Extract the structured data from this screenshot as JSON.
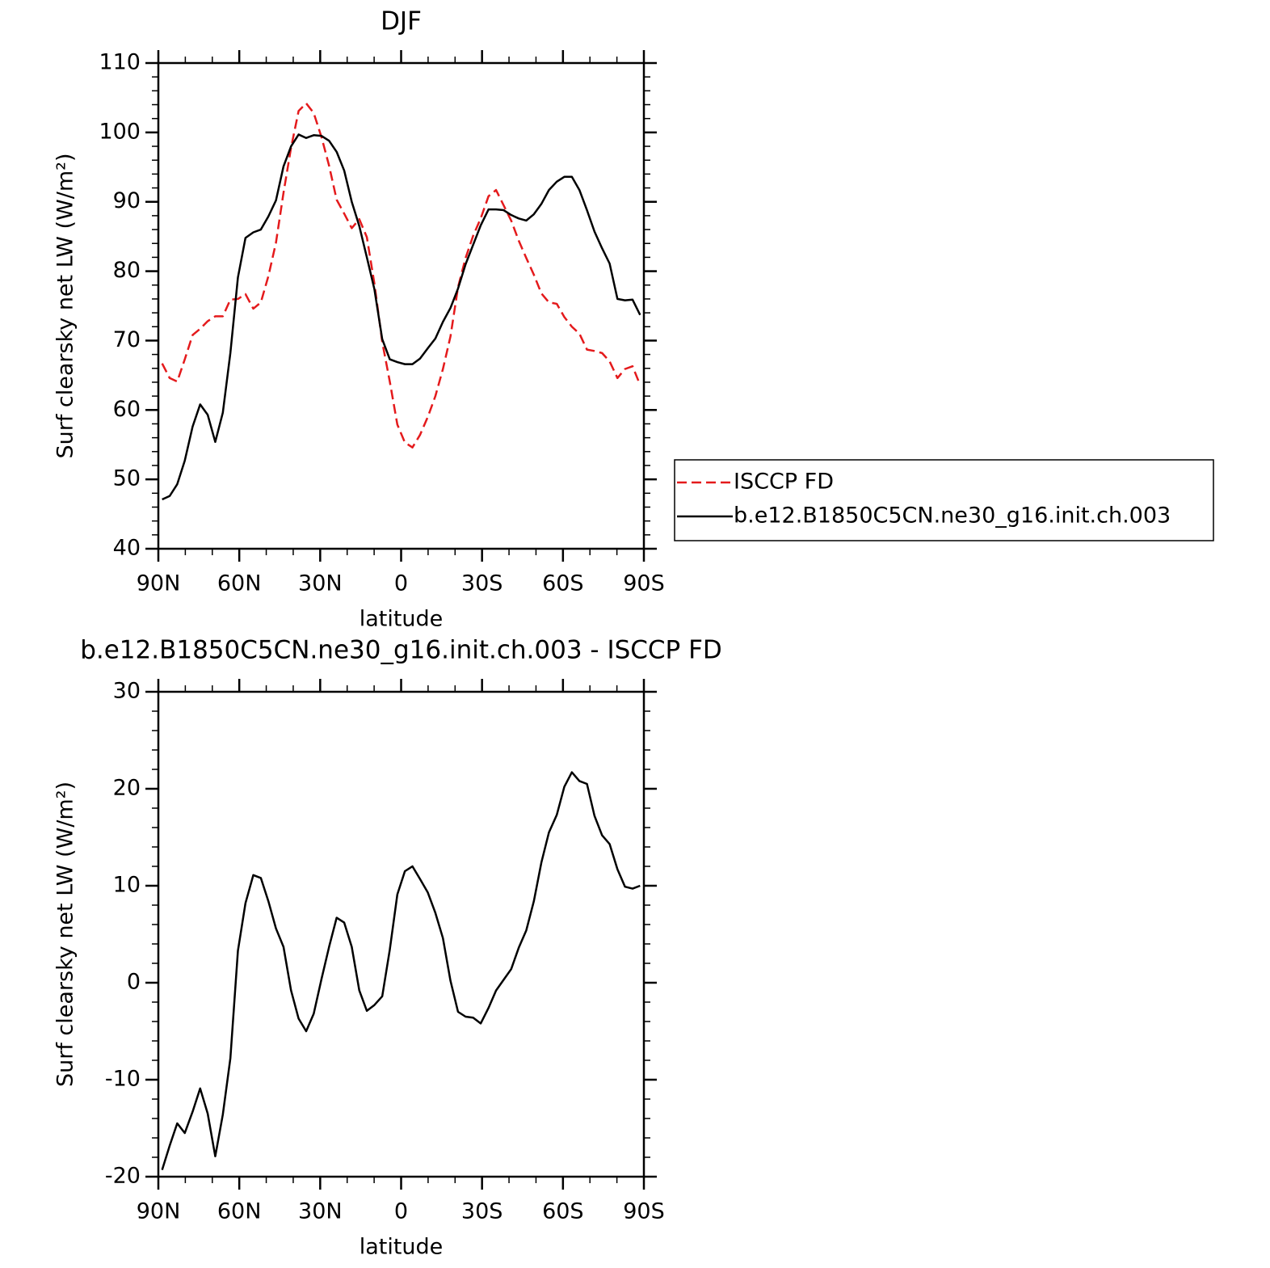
{
  "chart_data": [
    {
      "type": "line",
      "title": "DJF",
      "xlabel": "latitude",
      "ylabel": "Surf clearsky net LW (W/m²)",
      "x": [
        88.6,
        85.8,
        83.0,
        80.2,
        77.3,
        74.5,
        71.7,
        68.9,
        66.1,
        63.3,
        60.5,
        57.7,
        54.8,
        52.0,
        49.2,
        46.4,
        43.6,
        40.8,
        38.0,
        35.2,
        32.4,
        29.5,
        26.7,
        23.9,
        21.1,
        18.3,
        15.5,
        12.7,
        9.9,
        7.0,
        4.2,
        1.4,
        -1.4,
        -4.2,
        -7.0,
        -9.9,
        -12.7,
        -15.5,
        -18.3,
        -21.1,
        -23.9,
        -26.7,
        -29.5,
        -32.4,
        -35.2,
        -38.0,
        -40.8,
        -43.6,
        -46.4,
        -49.2,
        -52.0,
        -54.8,
        -57.7,
        -60.5,
        -63.3,
        -66.1,
        -68.9,
        -71.7,
        -74.5,
        -77.3,
        -80.2,
        -83.0,
        -85.8,
        -88.6
      ],
      "series": [
        {
          "name": "ISCCP FD",
          "color": "#e41a1c",
          "linestyle": "dashed",
          "values": [
            66.7,
            64.6,
            64.1,
            67.3,
            70.8,
            71.7,
            72.8,
            73.5,
            73.5,
            75.9,
            76.0,
            76.7,
            74.6,
            75.5,
            79.3,
            84.1,
            91.3,
            97.8,
            103.1,
            104.2,
            102.8,
            99.3,
            95.2,
            90.3,
            88.3,
            86.2,
            87.5,
            84.9,
            78.2,
            69.8,
            64.1,
            57.9,
            55.3,
            54.6,
            56.4,
            59.0,
            62.0,
            65.9,
            70.6,
            77.7,
            81.9,
            85.1,
            87.6,
            90.8,
            91.7,
            89.5,
            87.3,
            84.4,
            81.9,
            79.5,
            76.8,
            75.5,
            75.3,
            73.4,
            72.0,
            71.0,
            68.7,
            68.5,
            68.2,
            67.0,
            64.6,
            65.9,
            66.3,
            63.6
          ]
        },
        {
          "name": "b.e12.B1850C5CN.ne30_g16.init.ch.003",
          "color": "#000000",
          "linestyle": "solid",
          "values": [
            47.1,
            47.6,
            49.3,
            52.7,
            57.6,
            60.8,
            59.3,
            55.4,
            59.6,
            68.2,
            79.1,
            84.8,
            85.6,
            86.0,
            87.9,
            90.2,
            95.1,
            98.0,
            99.7,
            99.2,
            99.6,
            99.5,
            98.8,
            97.2,
            94.5,
            90.0,
            86.5,
            82.0,
            77.4,
            70.2,
            67.3,
            66.9,
            66.6,
            66.6,
            67.4,
            68.9,
            70.3,
            72.7,
            74.7,
            77.5,
            81.0,
            83.8,
            86.6,
            88.9,
            88.9,
            88.8,
            88.1,
            87.6,
            87.3,
            88.2,
            89.7,
            91.7,
            92.9,
            93.6,
            93.6,
            91.7,
            88.8,
            85.7,
            83.3,
            81.1,
            76.0,
            75.8,
            75.9,
            73.7
          ]
        }
      ],
      "xlim": [
        90,
        -90
      ],
      "xticks": [
        {
          "value": 90,
          "label": "90N"
        },
        {
          "value": 60,
          "label": "60N"
        },
        {
          "value": 30,
          "label": "30N"
        },
        0,
        {
          "value": -30,
          "label": "30S"
        },
        {
          "value": -60,
          "label": "60S"
        },
        {
          "value": -90,
          "label": "90S"
        }
      ],
      "xminorticks": [
        80,
        70,
        50,
        40,
        20,
        10,
        -10,
        -20,
        -40,
        -50,
        -70,
        -80
      ],
      "ylim": [
        40,
        110
      ],
      "yticks": [
        40,
        50,
        60,
        70,
        80,
        90,
        100,
        110
      ],
      "yminorticks": [
        42,
        44,
        46,
        48,
        52,
        54,
        56,
        58,
        62,
        64,
        66,
        68,
        72,
        74,
        76,
        78,
        82,
        84,
        86,
        88,
        92,
        94,
        96,
        98,
        102,
        104,
        106,
        108
      ],
      "legend": "right"
    },
    {
      "type": "line",
      "title": "b.e12.B1850C5CN.ne30_g16.init.ch.003 - ISCCP FD",
      "xlabel": "latitude",
      "ylabel": "Surf clearsky net LW (W/m²)",
      "x": [
        88.6,
        85.8,
        83.0,
        80.2,
        77.3,
        74.5,
        71.7,
        68.9,
        66.1,
        63.3,
        60.5,
        57.7,
        54.8,
        52.0,
        49.2,
        46.4,
        43.6,
        40.8,
        38.0,
        35.2,
        32.4,
        29.5,
        26.7,
        23.9,
        21.1,
        18.3,
        15.5,
        12.7,
        9.9,
        7.0,
        4.2,
        1.4,
        -1.4,
        -4.2,
        -7.0,
        -9.9,
        -12.7,
        -15.5,
        -18.3,
        -21.1,
        -23.9,
        -26.7,
        -29.5,
        -32.4,
        -35.2,
        -38.0,
        -40.8,
        -43.6,
        -46.4,
        -49.2,
        -52.0,
        -54.8,
        -57.7,
        -60.5,
        -63.3,
        -66.1,
        -68.9,
        -71.7,
        -74.5,
        -77.3,
        -80.2,
        -83.0,
        -85.8,
        -88.6
      ],
      "color": "#000000",
      "values": [
        -19.3,
        -16.8,
        -14.5,
        -15.5,
        -13.3,
        -10.9,
        -13.5,
        -17.9,
        -13.6,
        -7.8,
        3.3,
        8.2,
        11.1,
        10.8,
        8.4,
        5.6,
        3.7,
        -0.8,
        -3.7,
        -5.0,
        -3.2,
        0.4,
        3.7,
        6.7,
        6.2,
        3.7,
        -0.8,
        -2.9,
        -2.3,
        -1.4,
        3.4,
        9.1,
        11.5,
        12.0,
        10.7,
        9.3,
        7.2,
        4.6,
        0.2,
        -3.0,
        -3.5,
        -3.6,
        -4.2,
        -2.6,
        -0.8,
        0.3,
        1.4,
        3.6,
        5.4,
        8.4,
        12.4,
        15.5,
        17.3,
        20.2,
        21.7,
        20.8,
        20.5,
        17.2,
        15.2,
        14.3,
        11.7,
        9.9,
        9.7,
        10.0
      ],
      "xlim": [
        90,
        -90
      ],
      "xticks": [
        {
          "value": 90,
          "label": "90N"
        },
        {
          "value": 60,
          "label": "60N"
        },
        {
          "value": 30,
          "label": "30N"
        },
        0,
        {
          "value": -30,
          "label": "30S"
        },
        {
          "value": -60,
          "label": "60S"
        },
        {
          "value": -90,
          "label": "90S"
        }
      ],
      "xminorticks": [
        80,
        70,
        50,
        40,
        20,
        10,
        -10,
        -20,
        -40,
        -50,
        -70,
        -80
      ],
      "ylim": [
        -20,
        30
      ],
      "yticks": [
        -20,
        -10,
        0,
        10,
        20,
        30
      ],
      "yminorticks": [
        -18,
        -16,
        -14,
        -12,
        -8,
        -6,
        -4,
        -2,
        2,
        4,
        6,
        8,
        12,
        14,
        16,
        18,
        22,
        24,
        26,
        28
      ]
    }
  ]
}
